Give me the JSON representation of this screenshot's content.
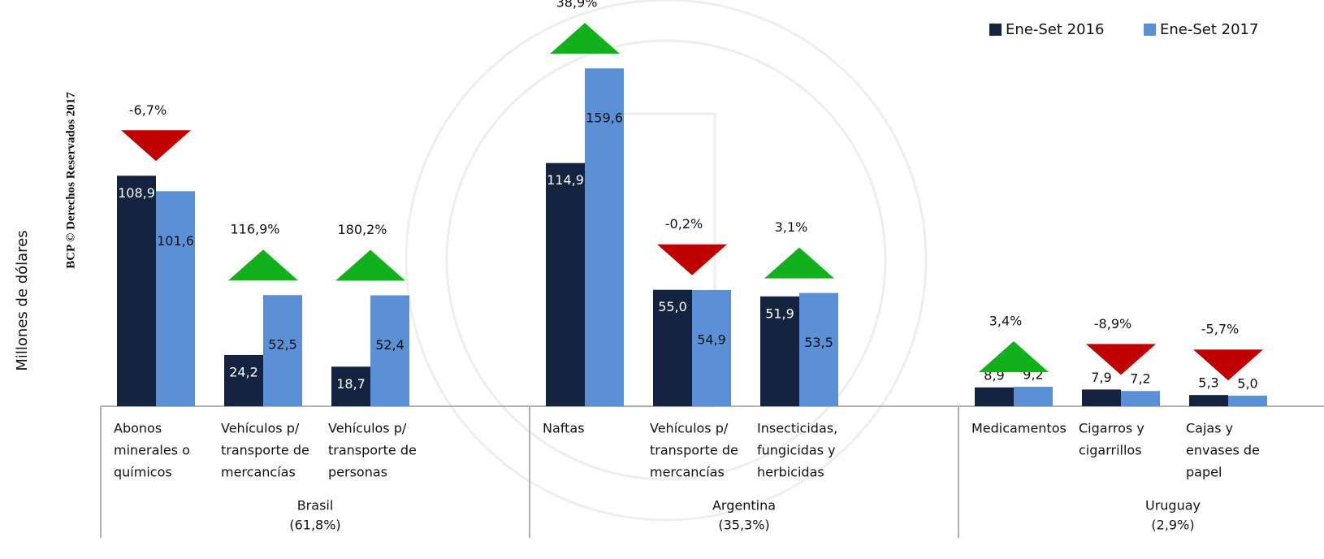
{
  "chart_data": {
    "type": "bar",
    "y_label": "Millones de dólares",
    "watermark": "BCP © Derechos Reservados 2017",
    "groups": [
      [
        "Brasil",
        "(61,8%)"
      ],
      [
        "Argentina",
        "(35,3%)"
      ],
      [
        "Uruguay",
        "(2,9%)"
      ]
    ],
    "categories": [
      [
        "Abonos",
        "minerales o",
        "químicos"
      ],
      [
        "Vehículos p/",
        "transporte de",
        "mercancías"
      ],
      [
        "Vehículos p/",
        "transporte de",
        "personas"
      ],
      [
        "Naftas"
      ],
      [
        "Vehículos p/",
        "transporte de",
        "mercancías"
      ],
      [
        "Insecticidas,",
        "fungicidas y",
        "herbicidas"
      ],
      [
        "Medicamentos"
      ],
      [
        "Cigarros y",
        "cigarrillos"
      ],
      [
        "Cajas y",
        "envases de",
        "papel"
      ]
    ],
    "series": [
      {
        "name": "Ene-Set 2016",
        "color": "#14233f",
        "values": [
          108.9,
          24.2,
          18.7,
          114.9,
          55.0,
          51.9,
          8.9,
          7.9,
          5.3
        ],
        "value_labels": [
          "108,9",
          "24,2",
          "18,7",
          "114,9",
          "55,0",
          "51,9",
          "8,9",
          "7,9",
          "5,3"
        ]
      },
      {
        "name": "Ene-Set 2017",
        "color": "#5b8fd6",
        "values": [
          101.6,
          52.5,
          52.4,
          159.6,
          54.9,
          53.5,
          9.2,
          7.2,
          5.0
        ],
        "value_labels": [
          "101,6",
          "52,5",
          "52,4",
          "159,6",
          "54,9",
          "53,5",
          "9,2",
          "7,2",
          "5,0"
        ]
      }
    ],
    "changes": [
      {
        "value": -6.7,
        "label": "-6,7%"
      },
      {
        "value": 116.9,
        "label": "116,9%"
      },
      {
        "value": 180.2,
        "label": "180,2%"
      },
      {
        "value": 38.9,
        "label": "38,9%"
      },
      {
        "value": -0.2,
        "label": "-0,2%"
      },
      {
        "value": 3.1,
        "label": "3,1%"
      },
      {
        "value": 3.4,
        "label": "3,4%"
      },
      {
        "value": -8.9,
        "label": "-8,9%"
      },
      {
        "value": -5.7,
        "label": "-5,7%"
      }
    ],
    "up_color": "#12b01c",
    "down_color": "#c00000",
    "ylim": [
      0,
      190
    ],
    "legend_position": "top-right"
  }
}
